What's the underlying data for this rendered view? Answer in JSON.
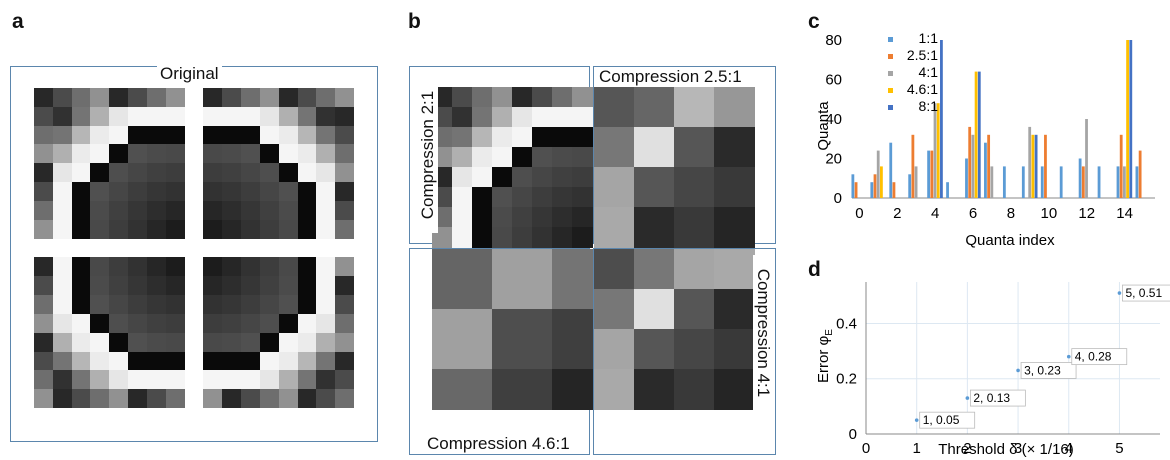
{
  "panel_labels": {
    "a": "a",
    "b": "b",
    "c": "c",
    "d": "d"
  },
  "panel_a": {
    "title": "Original"
  },
  "panel_b": {
    "tl_title": "Compression 2:1",
    "tr_title": "Compression 2.5:1",
    "bl_title": "Compression 4.6:1",
    "br_title": "Compression 4:1"
  },
  "chart_data": [
    {
      "type": "bar",
      "xlabel": "Quanta index",
      "ylabel": "Quanta",
      "x": [
        0,
        1,
        2,
        3,
        4,
        5,
        6,
        7,
        8,
        9,
        10,
        11,
        12,
        13,
        14,
        15
      ],
      "xticks": [
        0,
        2,
        4,
        6,
        8,
        10,
        12,
        14
      ],
      "ylim": [
        0,
        80
      ],
      "yticks": [
        0,
        20,
        40,
        60,
        80
      ],
      "grid": false,
      "legend": "top-left",
      "series": [
        {
          "name": "1:1",
          "color": "#5b9bd5",
          "values": [
            12,
            8,
            28,
            12,
            24,
            8,
            20,
            28,
            16,
            16,
            16,
            16,
            20,
            16,
            16,
            16
          ]
        },
        {
          "name": "2.5:1",
          "color": "#ed7d31",
          "values": [
            8,
            12,
            8,
            32,
            24,
            0,
            36,
            32,
            0,
            0,
            32,
            0,
            16,
            0,
            32,
            24
          ]
        },
        {
          "name": "4:1",
          "color": "#a5a5a5",
          "values": [
            0,
            24,
            0,
            16,
            48,
            0,
            32,
            16,
            0,
            36,
            0,
            0,
            40,
            0,
            16,
            0
          ]
        },
        {
          "name": "4.6:1",
          "color": "#ffc000",
          "values": [
            0,
            16,
            0,
            0,
            48,
            0,
            64,
            0,
            0,
            32,
            0,
            0,
            0,
            0,
            80,
            0
          ]
        },
        {
          "name": "8:1",
          "color": "#4472c4",
          "values": [
            0,
            0,
            0,
            0,
            80,
            0,
            64,
            0,
            0,
            32,
            0,
            0,
            0,
            0,
            80,
            0
          ]
        }
      ]
    },
    {
      "type": "scatter",
      "xlabel": "Threshold δ (× 1/16)",
      "ylabel": "Error φE",
      "xlim": [
        0,
        5.8
      ],
      "ylim": [
        0,
        0.55
      ],
      "xticks": [
        0,
        1,
        2,
        3,
        4,
        5
      ],
      "yticks": [
        0,
        0.2,
        0.4
      ],
      "grid": true,
      "x": [
        1,
        2,
        3,
        4,
        5
      ],
      "y": [
        0.05,
        0.13,
        0.23,
        0.28,
        0.51
      ],
      "point_labels": [
        "1, 0.05",
        "2, 0.13",
        "3, 0.23",
        "4, 0.28",
        "5, 0.51"
      ]
    }
  ]
}
